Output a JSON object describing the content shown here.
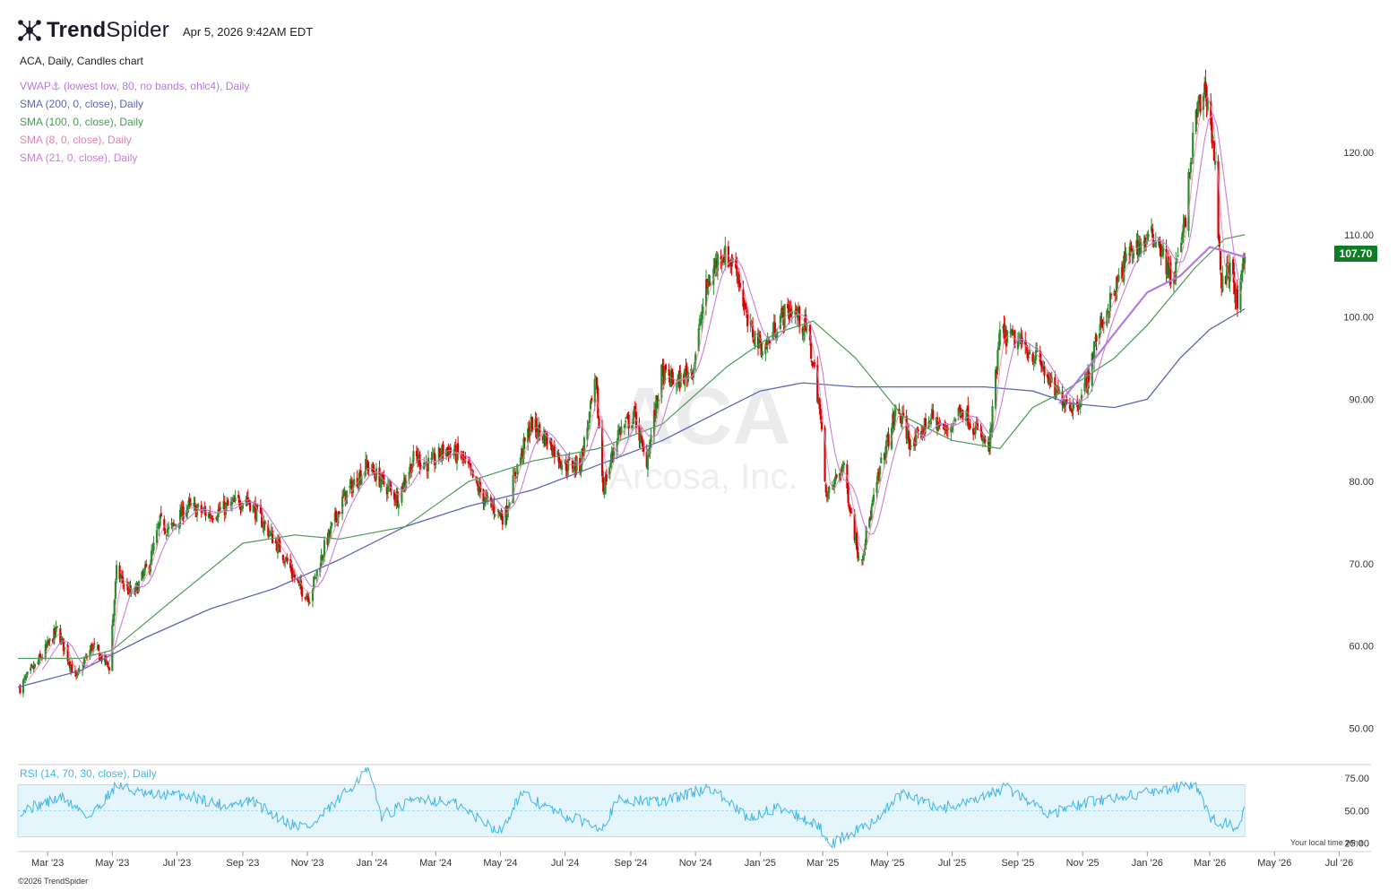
{
  "header": {
    "brand_bold": "Trend",
    "brand_light": "Spider",
    "timestamp": "Apr 5, 2026 9:42AM EDT",
    "chart_description": "ACA, Daily, Candles chart"
  },
  "legend": [
    {
      "text": "VWAP⚓ (lowest low, 80, no bands, ohlc4), Daily",
      "color": "#b679dd"
    },
    {
      "text": "SMA (200, 0, close), Daily",
      "color": "#5b67b5"
    },
    {
      "text": "SMA (100, 0, close), Daily",
      "color": "#4a9a55"
    },
    {
      "text": "SMA (8, 0, close), Daily",
      "color": "#e480b0"
    },
    {
      "text": "SMA (21, 0, close), Daily",
      "color": "#c77fd6"
    }
  ],
  "watermark": {
    "symbol": "ACA",
    "company": "Arcosa, Inc."
  },
  "last_price": "107.70",
  "rsi_label": "RSI (14, 70, 30, close), Daily",
  "timezone_note": "Your local time zone",
  "copyright": "©2026 TrendSpider",
  "colors": {
    "up": "#2e8b2e",
    "down": "#d90000",
    "rsi": "#3fb5ea",
    "price_badge": "#0f7d25"
  },
  "chart_data": {
    "type": "candlestick",
    "title": "ACA, Daily, Candles chart",
    "price_axis": {
      "ticks": [
        "50.00",
        "60.00",
        "70.00",
        "80.00",
        "90.00",
        "100.00",
        "110.00",
        "120.00"
      ],
      "ylim": [
        47,
        132
      ]
    },
    "rsi_axis": {
      "ticks": [
        "25.00",
        "50.00",
        "75.00"
      ],
      "ylim": [
        20,
        84
      ],
      "band": [
        30,
        70
      ]
    },
    "x_ticks": [
      "Mar '23",
      "May '23",
      "Jul '23",
      "Sep '23",
      "Nov '23",
      "Jan '24",
      "Mar '24",
      "May '24",
      "Jul '24",
      "Sep '24",
      "Nov '24",
      "Jan '25",
      "Mar '25",
      "May '25",
      "Jul '25",
      "Sep '25",
      "Nov '25",
      "Jan '26",
      "Mar '26",
      "May '26",
      "Jul '26"
    ],
    "x_range": [
      "2023-02-01",
      "2026-07-31"
    ],
    "close_path": [
      [
        "2023-02-03",
        55
      ],
      [
        "2023-02-20",
        58
      ],
      [
        "2023-03-10",
        62
      ],
      [
        "2023-03-28",
        56
      ],
      [
        "2023-04-12",
        60
      ],
      [
        "2023-04-28",
        57.5
      ],
      [
        "2023-05-05",
        69
      ],
      [
        "2023-05-20",
        66
      ],
      [
        "2023-06-05",
        70
      ],
      [
        "2023-06-15",
        75
      ],
      [
        "2023-06-25",
        74
      ],
      [
        "2023-07-10",
        77
      ],
      [
        "2023-08-01",
        76
      ],
      [
        "2023-08-20",
        77
      ],
      [
        "2023-09-05",
        78
      ],
      [
        "2023-09-25",
        74
      ],
      [
        "2023-10-10",
        71
      ],
      [
        "2023-10-25",
        67
      ],
      [
        "2023-11-03",
        66
      ],
      [
        "2023-11-17",
        72
      ],
      [
        "2023-12-05",
        78
      ],
      [
        "2023-12-27",
        82
      ],
      [
        "2024-01-10",
        80
      ],
      [
        "2024-01-25",
        78
      ],
      [
        "2024-02-10",
        83
      ],
      [
        "2024-02-25",
        82
      ],
      [
        "2024-03-10",
        84
      ],
      [
        "2024-03-25",
        83
      ],
      [
        "2024-04-15",
        78
      ],
      [
        "2024-05-05",
        75.5
      ],
      [
        "2024-05-15",
        81
      ],
      [
        "2024-05-30",
        87
      ],
      [
        "2024-06-15",
        85
      ],
      [
        "2024-06-30",
        82
      ],
      [
        "2024-07-15",
        82
      ],
      [
        "2024-07-30",
        92
      ],
      [
        "2024-08-06",
        79
      ],
      [
        "2024-08-20",
        86
      ],
      [
        "2024-09-05",
        88
      ],
      [
        "2024-09-15",
        82
      ],
      [
        "2024-09-30",
        93
      ],
      [
        "2024-10-15",
        92
      ],
      [
        "2024-10-30",
        94
      ],
      [
        "2024-11-10",
        103
      ],
      [
        "2024-11-25",
        108
      ],
      [
        "2024-12-10",
        106
      ],
      [
        "2024-12-20",
        99
      ],
      [
        "2025-01-05",
        96
      ],
      [
        "2025-01-20",
        100
      ],
      [
        "2025-02-01",
        101
      ],
      [
        "2025-02-15",
        98
      ],
      [
        "2025-02-25",
        90
      ],
      [
        "2025-03-05",
        78
      ],
      [
        "2025-03-20",
        82
      ],
      [
        "2025-04-05",
        70
      ],
      [
        "2025-04-15",
        76
      ],
      [
        "2025-04-25",
        82
      ],
      [
        "2025-05-10",
        89
      ],
      [
        "2025-05-25",
        84
      ],
      [
        "2025-06-10",
        88
      ],
      [
        "2025-06-25",
        86
      ],
      [
        "2025-07-10",
        89
      ],
      [
        "2025-07-25",
        86
      ],
      [
        "2025-08-05",
        84
      ],
      [
        "2025-08-15",
        98
      ],
      [
        "2025-09-01",
        97
      ],
      [
        "2025-09-20",
        95
      ],
      [
        "2025-10-05",
        91
      ],
      [
        "2025-10-25",
        89
      ],
      [
        "2025-11-05",
        92
      ],
      [
        "2025-11-15",
        98
      ],
      [
        "2025-12-01",
        103
      ],
      [
        "2025-12-15",
        108
      ],
      [
        "2026-01-10",
        110
      ],
      [
        "2026-01-25",
        104
      ],
      [
        "2026-02-05",
        111
      ],
      [
        "2026-02-15",
        124
      ],
      [
        "2026-02-25",
        128
      ],
      [
        "2026-03-05",
        120
      ],
      [
        "2026-03-12",
        104
      ],
      [
        "2026-03-20",
        106
      ],
      [
        "2026-03-28",
        101
      ],
      [
        "2026-04-03",
        107.7
      ]
    ],
    "sma200_path": [
      [
        "2023-02-01",
        55
      ],
      [
        "2023-04-01",
        57
      ],
      [
        "2023-06-01",
        61
      ],
      [
        "2023-08-01",
        64.5
      ],
      [
        "2023-10-01",
        67
      ],
      [
        "2023-12-01",
        70.5
      ],
      [
        "2024-02-01",
        74.5
      ],
      [
        "2024-04-01",
        77
      ],
      [
        "2024-06-01",
        79
      ],
      [
        "2024-08-01",
        82
      ],
      [
        "2024-10-01",
        85
      ],
      [
        "2024-12-01",
        89
      ],
      [
        "2025-01-01",
        91
      ],
      [
        "2025-02-10",
        92
      ],
      [
        "2025-04-01",
        91.5
      ],
      [
        "2025-06-01",
        91.5
      ],
      [
        "2025-08-01",
        91.5
      ],
      [
        "2025-09-15",
        91
      ],
      [
        "2025-10-20",
        89.5
      ],
      [
        "2025-12-01",
        89
      ],
      [
        "2026-01-01",
        90
      ],
      [
        "2026-02-01",
        95
      ],
      [
        "2026-03-01",
        98.5
      ],
      [
        "2026-04-03",
        101
      ]
    ],
    "sma100_path": [
      [
        "2023-02-01",
        58.5
      ],
      [
        "2023-04-01",
        58.5
      ],
      [
        "2023-05-01",
        59.5
      ],
      [
        "2023-07-01",
        66
      ],
      [
        "2023-09-01",
        72.5
      ],
      [
        "2023-10-20",
        73.5
      ],
      [
        "2023-12-01",
        73
      ],
      [
        "2024-02-01",
        74.5
      ],
      [
        "2024-04-01",
        80
      ],
      [
        "2024-06-01",
        82.5
      ],
      [
        "2024-08-01",
        84
      ],
      [
        "2024-10-01",
        87
      ],
      [
        "2024-12-01",
        94
      ],
      [
        "2025-01-15",
        98
      ],
      [
        "2025-02-20",
        99.5
      ],
      [
        "2025-04-01",
        95
      ],
      [
        "2025-05-15",
        88
      ],
      [
        "2025-07-01",
        85
      ],
      [
        "2025-08-15",
        84
      ],
      [
        "2025-09-15",
        89
      ],
      [
        "2025-10-15",
        91
      ],
      [
        "2025-12-01",
        95
      ],
      [
        "2026-01-01",
        99
      ],
      [
        "2026-02-15",
        106
      ],
      [
        "2026-03-15",
        109.5
      ],
      [
        "2026-04-03",
        110
      ]
    ],
    "vwap_path": [
      [
        "2025-10-10",
        89.5
      ],
      [
        "2025-11-01",
        93
      ],
      [
        "2025-12-01",
        98
      ],
      [
        "2026-01-01",
        103
      ],
      [
        "2026-02-01",
        105
      ],
      [
        "2026-03-01",
        108.5
      ],
      [
        "2026-03-15",
        108
      ],
      [
        "2026-04-03",
        107.3
      ]
    ],
    "rsi_path": [
      [
        "2023-02-03",
        50
      ],
      [
        "2023-03-15",
        60
      ],
      [
        "2023-04-10",
        45
      ],
      [
        "2023-05-05",
        70
      ],
      [
        "2023-06-01",
        62
      ],
      [
        "2023-07-10",
        62
      ],
      [
        "2023-08-15",
        54
      ],
      [
        "2023-09-10",
        57
      ],
      [
        "2023-10-15",
        40
      ],
      [
        "2023-11-05",
        38
      ],
      [
        "2023-12-05",
        62
      ],
      [
        "2023-12-28",
        82
      ],
      [
        "2024-01-10",
        46
      ],
      [
        "2024-02-15",
        60
      ],
      [
        "2024-03-20",
        55
      ],
      [
        "2024-05-01",
        34
      ],
      [
        "2024-05-20",
        63
      ],
      [
        "2024-06-30",
        46
      ],
      [
        "2024-08-05",
        38
      ],
      [
        "2024-08-20",
        58
      ],
      [
        "2024-10-01",
        57
      ],
      [
        "2024-11-15",
        68
      ],
      [
        "2024-12-20",
        44
      ],
      [
        "2025-01-20",
        53
      ],
      [
        "2025-02-25",
        38
      ],
      [
        "2025-03-10",
        25
      ],
      [
        "2025-04-15",
        40
      ],
      [
        "2025-05-15",
        63
      ],
      [
        "2025-06-20",
        52
      ],
      [
        "2025-07-20",
        56
      ],
      [
        "2025-08-20",
        68
      ],
      [
        "2025-10-01",
        48
      ],
      [
        "2025-11-15",
        58
      ],
      [
        "2026-01-15",
        66
      ],
      [
        "2026-02-15",
        70
      ],
      [
        "2026-03-01",
        44
      ],
      [
        "2026-03-25",
        38
      ],
      [
        "2026-04-03",
        49
      ]
    ]
  }
}
